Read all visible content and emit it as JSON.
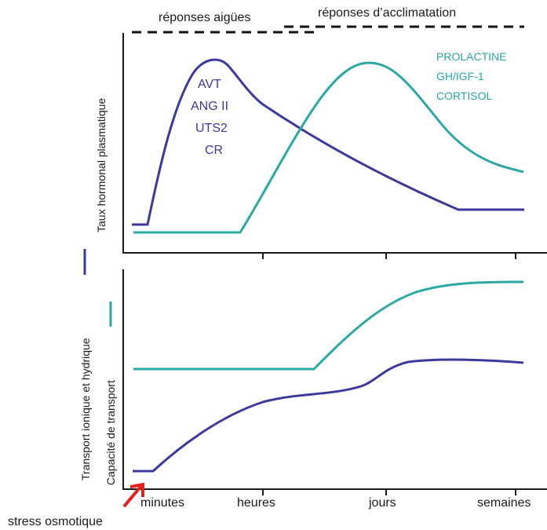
{
  "header": {
    "acute_label": "réponses aigües",
    "acclimation_label": "réponses d’acclimatation"
  },
  "top_panel": {
    "y_label": "Taux hormonal  plasmatique",
    "blue_hormones": [
      "AVT",
      "ANG II",
      "UTS2",
      "CR"
    ],
    "teal_hormones": [
      "PROLACTINE",
      "GH/IGF-1",
      "CORTISOL"
    ]
  },
  "bottom_panel": {
    "y_label_blue": "Transport  ionique  et  hydrique",
    "y_label_teal": "Capacité  de  transport"
  },
  "x_axis": {
    "ticks": [
      "minutes",
      "heures",
      "jours",
      "semaines"
    ]
  },
  "stimulus": {
    "label": "stress osmotique"
  },
  "colors": {
    "blue": "#3b3a9c",
    "teal": "#2ba8a3",
    "arrow": "#e3201b"
  }
}
